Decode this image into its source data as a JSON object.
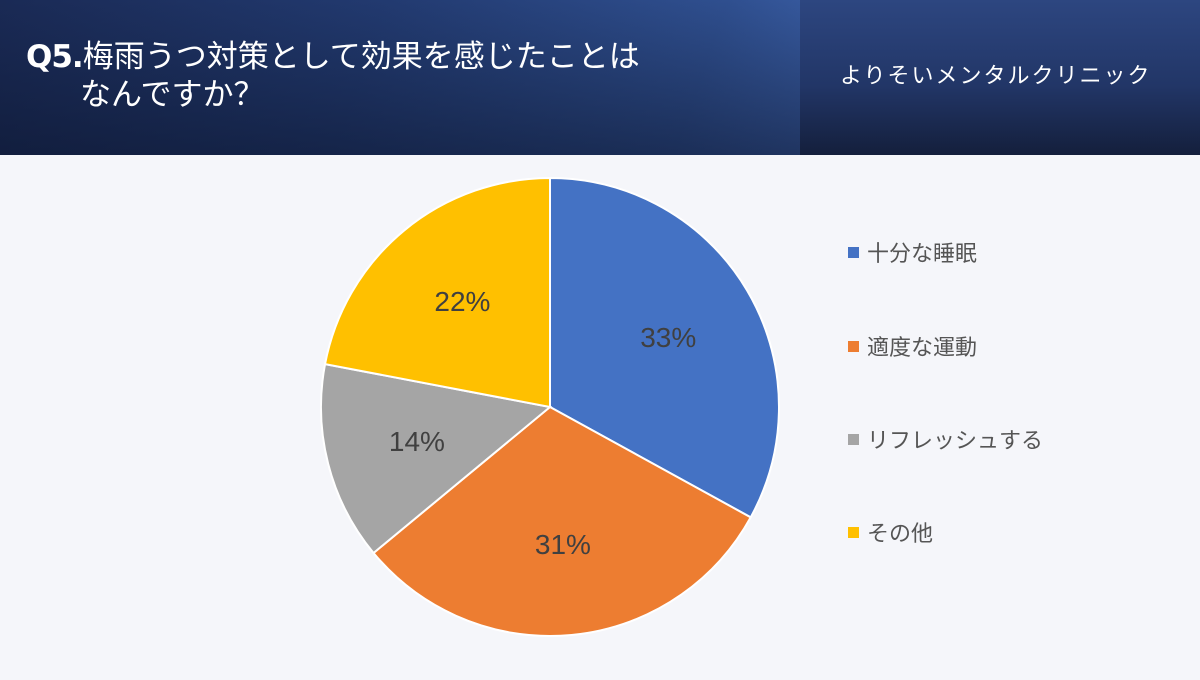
{
  "header": {
    "question_prefix": "Q5.",
    "question_line1": "梅雨うつ対策として効果を感じたことは",
    "question_line2": "なんですか？",
    "clinic_name": "よりそいメンタルクリニック"
  },
  "legend": [
    {
      "label": "十分な睡眠",
      "color": "#4472C4"
    },
    {
      "label": "適度な運動",
      "color": "#ED7D31"
    },
    {
      "label": "リフレッシュする",
      "color": "#A5A5A5"
    },
    {
      "label": "その他",
      "color": "#FFC000"
    }
  ],
  "chart_data": {
    "type": "pie",
    "title": "Q5.梅雨うつ対策として効果を感じたことはなんですか？",
    "categories": [
      "十分な睡眠",
      "適度な運動",
      "リフレッシュする",
      "その他"
    ],
    "values": [
      33,
      31,
      14,
      22
    ],
    "labels": [
      "33%",
      "31%",
      "14%",
      "22%"
    ],
    "colors": [
      "#4472C4",
      "#ED7D31",
      "#A5A5A5",
      "#FFC000"
    ],
    "start_angle": "12 o'clock, clockwise",
    "legend_position": "right"
  }
}
